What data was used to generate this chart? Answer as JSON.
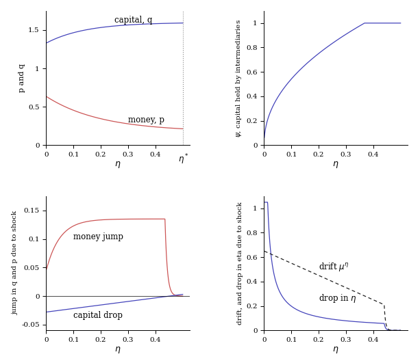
{
  "eta_star": 0.5,
  "fig_width": 6.13,
  "fig_height": 5.31,
  "blue_color": "#4444BB",
  "red_color": "#CC5555",
  "black_color": "#222222",
  "line_width": 0.9,
  "ylabels": [
    "p and q",
    "$\\psi$, capital held by intermediaries",
    "jump in q and p due to shock",
    "drift, and drop in eta due to shock"
  ],
  "xlabels": [
    "$\\eta$",
    "$\\eta$",
    "$\\eta$",
    "$\\eta$"
  ]
}
